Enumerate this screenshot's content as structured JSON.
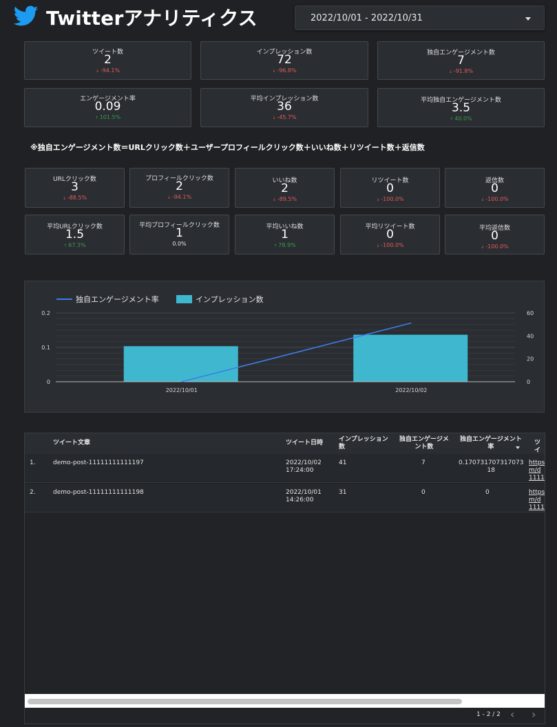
{
  "header": {
    "title": "Twitterアナリティクス",
    "logo_icon": "twitter-bird-icon",
    "date_range": "2022/10/01 - 2022/10/31"
  },
  "summary_cards": [
    {
      "id": "tweets",
      "label": "ツイート数",
      "value": "2",
      "delta": "-94.1%",
      "trend": "down"
    },
    {
      "id": "impressions",
      "label": "インプレッション数",
      "value": "72",
      "delta": "-96.8%",
      "trend": "down"
    },
    {
      "id": "unique-engagements",
      "label": "独自エンゲージメント数",
      "value": "7",
      "delta": "-91.8%",
      "trend": "down"
    },
    {
      "id": "engagement-rate",
      "label": "エンゲージメント率",
      "value": "0.09",
      "delta": "101.5%",
      "trend": "up"
    },
    {
      "id": "avg-impressions",
      "label": "平均インプレッション数",
      "value": "36",
      "delta": "-45.7%",
      "trend": "down"
    },
    {
      "id": "avg-unique-engagements",
      "label": "平均独自エンゲージメント数",
      "value": "3.5",
      "delta": "40.0%",
      "trend": "up"
    }
  ],
  "note": "※独自エンゲージメント数＝URLクリック数＋ユーザープロフィールクリック数＋いいね数＋リツイート数＋返信数",
  "detail_cards": [
    {
      "id": "url-clicks",
      "label": "URLクリック数",
      "value": "3",
      "delta": "-88.5%",
      "trend": "down"
    },
    {
      "id": "profile-clicks",
      "label": "プロフィールクリック数",
      "value": "2",
      "delta": "-94.1%",
      "trend": "down"
    },
    {
      "id": "likes",
      "label": "いいね数",
      "value": "2",
      "delta": "-89.5%",
      "trend": "down"
    },
    {
      "id": "retweets",
      "label": "リツイート数",
      "value": "0",
      "delta": "-100.0%",
      "trend": "down"
    },
    {
      "id": "replies",
      "label": "返信数",
      "value": "0",
      "delta": "-100.0%",
      "trend": "down"
    },
    {
      "id": "avg-url-clicks",
      "label": "平均URLクリック数",
      "value": "1.5",
      "delta": "67.3%",
      "trend": "up"
    },
    {
      "id": "avg-profile-clicks",
      "label": "平均プロフィールクリック数",
      "value": "1",
      "delta": "0.0%",
      "trend": "flat"
    },
    {
      "id": "avg-likes",
      "label": "平均いいね数",
      "value": "1",
      "delta": "78.9%",
      "trend": "up"
    },
    {
      "id": "avg-retweets",
      "label": "平均リツイート数",
      "value": "0",
      "delta": "-100.0%",
      "trend": "down"
    },
    {
      "id": "avg-replies",
      "label": "平均返信数",
      "value": "0",
      "delta": "-100.0%",
      "trend": "down"
    }
  ],
  "chart_data": {
    "type": "bar",
    "categories": [
      "2022/10/01",
      "2022/10/02"
    ],
    "series": [
      {
        "name": "独自エンゲージメント率",
        "kind": "line",
        "axis": "left",
        "values": [
          0,
          0.1707
        ],
        "color": "#3d7ee6"
      },
      {
        "name": "インプレッション数",
        "kind": "bar",
        "axis": "right",
        "values": [
          31,
          41
        ],
        "color": "#3fb8cf"
      }
    ],
    "y_left": {
      "range": [
        0,
        0.2
      ],
      "ticks": [
        "0",
        "0.1",
        "0.2"
      ]
    },
    "y_right": {
      "range": [
        0,
        60
      ],
      "ticks": [
        "0",
        "20",
        "40",
        "60"
      ]
    },
    "legend_position": "top-left",
    "grid": true
  },
  "table": {
    "columns": [
      "ツイート文章",
      "ツイート日時",
      "インプレッション\n数",
      "独自エンゲージメ\nント数",
      "独自エンゲージメント\n率",
      "ツイ"
    ],
    "rows": [
      {
        "index": "1.",
        "text": "demo-post-11111111111197",
        "datetime": "2022/10/02\n17:24:00",
        "impressions": "41",
        "unique_engagements": "7",
        "rate": "0.170731707317073\n18",
        "link": "https:/\nm/d\n1111"
      },
      {
        "index": "2.",
        "text": "demo-post-11111111111198",
        "datetime": "2022/10/01\n14:26:00",
        "impressions": "31",
        "unique_engagements": "0",
        "rate": "0",
        "link": "https:/\nm/d\n1111"
      }
    ],
    "sorted_column": "独自エンゲージメント率",
    "pagination": "1 - 2 / 2"
  }
}
